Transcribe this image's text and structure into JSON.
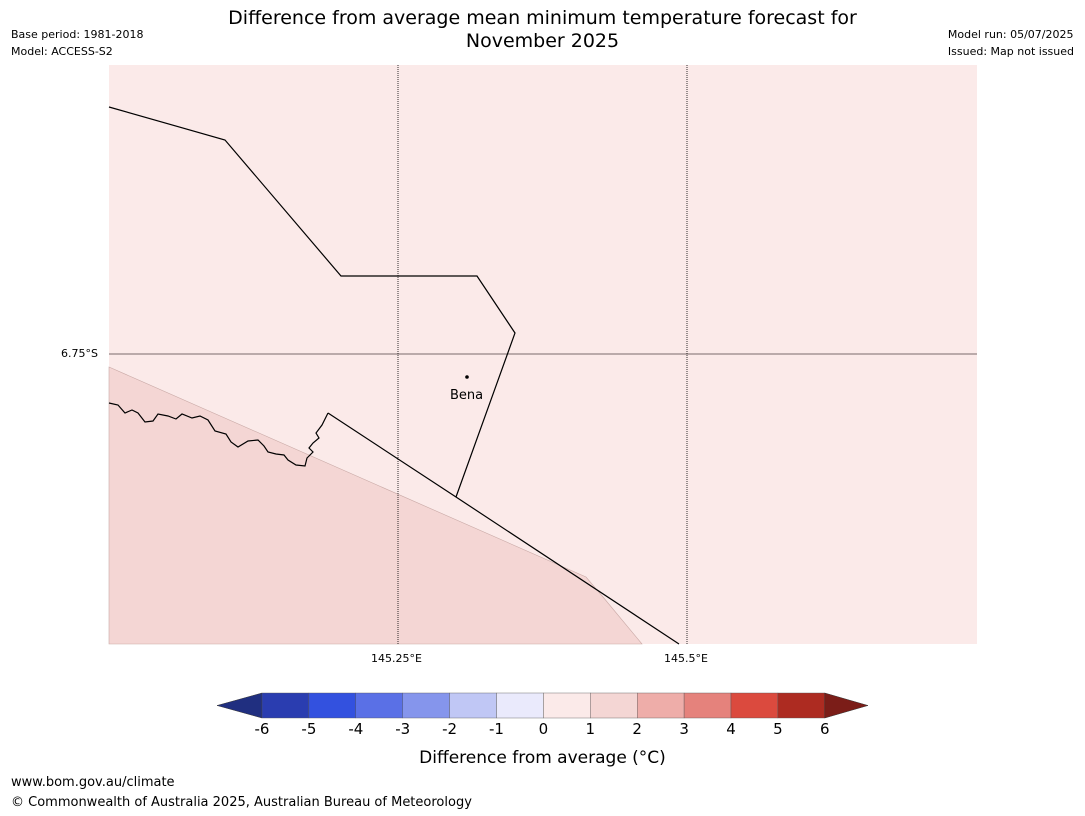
{
  "header": {
    "base_period": "Base period: 1981-2018",
    "model": "Model: ACCESS-S2",
    "title_line1": "Difference from average mean minimum temperature forecast for",
    "title_line2": "November 2025",
    "model_run": "Model run: 05/07/2025",
    "issued": "Issued: Map not issued"
  },
  "map": {
    "lat_label": "6.75°S",
    "lon_labels": [
      "145.25°E",
      "145.5°E"
    ],
    "place_name": "Bena",
    "colors": {
      "band_0_1": "#fbeae9",
      "band_1_2": "#f4d6d4",
      "boundary": "#000000",
      "graticule": "#7a6a6a"
    }
  },
  "legend": {
    "title": "Difference from average (°C)",
    "ticks": [
      "-6",
      "-5",
      "-4",
      "-3",
      "-2",
      "-1",
      "0",
      "1",
      "2",
      "3",
      "4",
      "5",
      "6"
    ],
    "bands": [
      {
        "range": "<-6",
        "color": "#202f80"
      },
      {
        "range": "-6 to -5",
        "color": "#2a3db0"
      },
      {
        "range": "-5 to -4",
        "color": "#3351df"
      },
      {
        "range": "-4 to -3",
        "color": "#5a70e6"
      },
      {
        "range": "-3 to -2",
        "color": "#8595ec"
      },
      {
        "range": "-2 to -1",
        "color": "#c0c7f5"
      },
      {
        "range": "-1 to 0",
        "color": "#eaeafc"
      },
      {
        "range": "0 to 1",
        "color": "#fbeae9"
      },
      {
        "range": "1 to 2",
        "color": "#f4d6d4"
      },
      {
        "range": "2 to 3",
        "color": "#eeada9"
      },
      {
        "range": "3 to 4",
        "color": "#e5827c"
      },
      {
        "range": "4 to 5",
        "color": "#db4a3e"
      },
      {
        "range": "5 to 6",
        "color": "#ad2b21"
      },
      {
        "range": ">6",
        "color": "#7b1d18"
      }
    ]
  },
  "footer": {
    "url": "www.bom.gov.au/climate",
    "copyright": "© Commonwealth of Australia 2025, Australian Bureau of Meteorology"
  }
}
